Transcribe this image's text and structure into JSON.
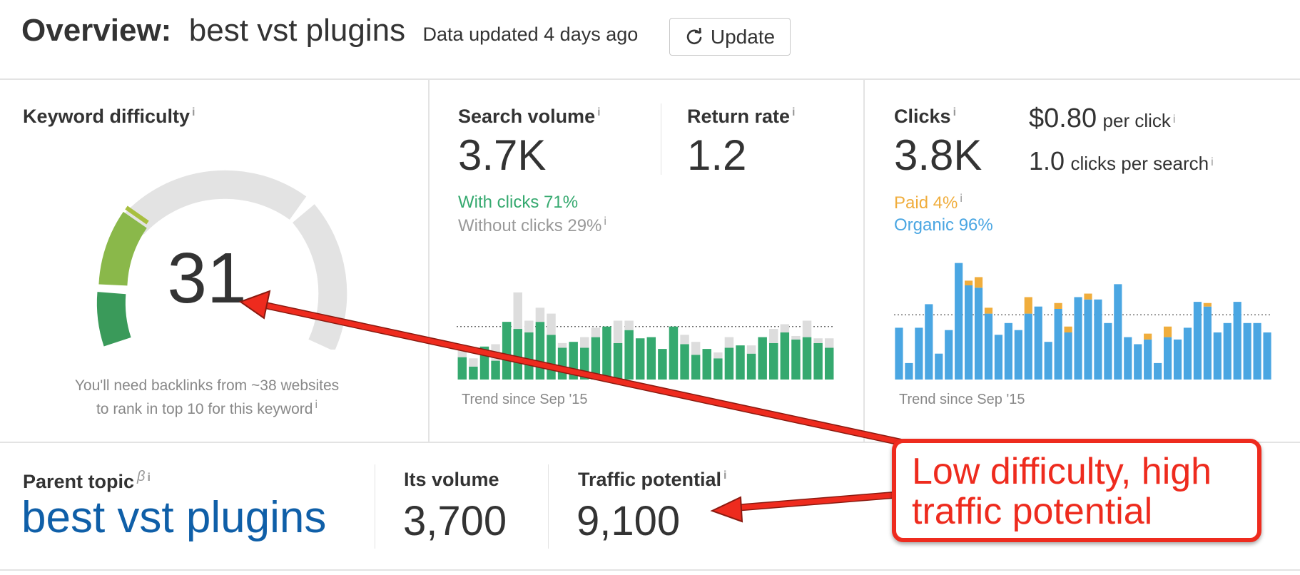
{
  "header": {
    "title_label": "Overview:",
    "keyword": "best vst plugins",
    "updated": "Data updated 4 days ago",
    "update_button": "Update"
  },
  "difficulty": {
    "label": "Keyword difficulty",
    "info": "i",
    "value": "31",
    "score": 31,
    "note_line1": "You'll need backlinks from ~38 websites",
    "note_line2": "to rank in top 10 for this keyword",
    "colors": {
      "low": "#3a9a5a",
      "mid": "#8ab84a",
      "track": "#e3e3e3"
    }
  },
  "search_volume": {
    "label": "Search volume",
    "value": "3.7K",
    "return_label": "Return rate",
    "return_value": "1.2",
    "with_clicks": "With clicks 71%",
    "without_clicks": "Without clicks 29%",
    "trend": "Trend since Sep '15",
    "colors": {
      "with": "#35a96f",
      "without": "#dddddd"
    }
  },
  "clicks": {
    "label": "Clicks",
    "value": "3.8K",
    "cpc_value": "$0.80",
    "cpc_label": "per click",
    "cps_value": "1.0",
    "cps_label": "clicks per search",
    "paid": "Paid 4%",
    "organic": "Organic 96%",
    "trend": "Trend since Sep '15",
    "colors": {
      "paid": "#f0ad3c",
      "organic": "#4aa6e2"
    }
  },
  "parent_topic": {
    "label": "Parent topic",
    "beta": "β",
    "keyword": "best vst plugins",
    "volume_label": "Its volume",
    "volume": "3,700",
    "traffic_label": "Traffic potential",
    "traffic": "9,100"
  },
  "callout": {
    "line1": "Low difficulty, high",
    "line2": "traffic potential",
    "color": "#ee2b1e"
  },
  "chart_data": [
    {
      "type": "bar",
      "name": "search_volume_trend",
      "series": [
        {
          "name": "With clicks",
          "values": [
            0.19,
            0.11,
            0.28,
            0.16,
            0.49,
            0.43,
            0.4,
            0.49,
            0.38,
            0.27,
            0.32,
            0.27,
            0.36,
            0.45,
            0.31,
            0.42,
            0.35,
            0.36,
            0.26,
            0.45,
            0.3,
            0.21,
            0.26,
            0.18,
            0.27,
            0.29,
            0.22,
            0.36,
            0.31,
            0.4,
            0.34,
            0.36,
            0.31,
            0.27
          ]
        },
        {
          "name": "Without clicks",
          "values": [
            0.06,
            0.07,
            0.0,
            0.14,
            0.0,
            0.31,
            0.1,
            0.12,
            0.18,
            0.04,
            0.0,
            0.09,
            0.08,
            0.0,
            0.19,
            0.08,
            0.0,
            0.0,
            0.0,
            0.0,
            0.08,
            0.11,
            0.0,
            0.05,
            0.09,
            0.0,
            0.07,
            0.0,
            0.12,
            0.07,
            0.03,
            0.14,
            0.04,
            0.08
          ]
        }
      ]
    },
    {
      "type": "bar",
      "name": "clicks_trend",
      "series": [
        {
          "name": "Organic",
          "values": [
            0.44,
            0.14,
            0.44,
            0.64,
            0.22,
            0.42,
            0.99,
            0.8,
            0.78,
            0.56,
            0.38,
            0.48,
            0.42,
            0.56,
            0.62,
            0.32,
            0.6,
            0.4,
            0.7,
            0.68,
            0.68,
            0.48,
            0.81,
            0.36,
            0.3,
            0.34,
            0.14,
            0.36,
            0.34,
            0.44,
            0.66,
            0.62,
            0.4,
            0.48,
            0.66,
            0.48,
            0.48,
            0.4
          ]
        },
        {
          "name": "Paid",
          "values": [
            0.0,
            0.0,
            0.0,
            0.0,
            0.0,
            0.0,
            0.0,
            0.04,
            0.09,
            0.05,
            0.0,
            0.0,
            0.0,
            0.14,
            0.0,
            0.0,
            0.05,
            0.05,
            0.0,
            0.05,
            0.0,
            0.0,
            0.0,
            0.0,
            0.0,
            0.05,
            0.0,
            0.09,
            0.0,
            0.0,
            0.0,
            0.03,
            0.0,
            0.0,
            0.0,
            0.0,
            0.0,
            0.0
          ]
        }
      ]
    }
  ]
}
